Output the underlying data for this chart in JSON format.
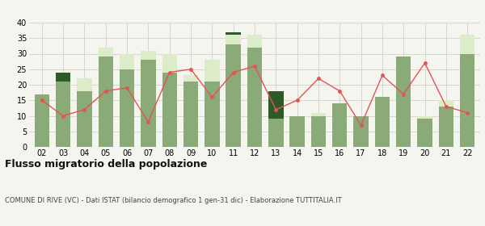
{
  "years": [
    "02",
    "03",
    "04",
    "05",
    "06",
    "07",
    "08",
    "09",
    "10",
    "11",
    "12",
    "13",
    "14",
    "15",
    "16",
    "17",
    "18",
    "19",
    "20",
    "21",
    "22"
  ],
  "iscritti_comuni": [
    17,
    21,
    18,
    29,
    25,
    28,
    24,
    21,
    21,
    33,
    32,
    9,
    10,
    10,
    14,
    10,
    16,
    29,
    9,
    13,
    30
  ],
  "iscritti_estero": [
    0,
    0,
    4,
    3,
    5,
    3,
    6,
    2,
    7,
    3,
    4,
    0,
    0,
    1,
    0,
    0,
    0,
    0,
    1,
    2,
    6
  ],
  "iscritti_altri": [
    0,
    3,
    0,
    0,
    0,
    0,
    0,
    0,
    0,
    1,
    0,
    9,
    0,
    0,
    0,
    0,
    0,
    0,
    0,
    0,
    0
  ],
  "cancellati": [
    15,
    10,
    12,
    18,
    19,
    8,
    24,
    25,
    16,
    24,
    26,
    12,
    15,
    22,
    18,
    7,
    23,
    17,
    27,
    13,
    11
  ],
  "color_comuni": "#8aaa78",
  "color_estero": "#ddecc8",
  "color_altri": "#2d5a27",
  "color_cancellati": "#e05555",
  "bg_color": "#f5f5f0",
  "grid_color": "#d0d0c8",
  "title": "Flusso migratorio della popolazione",
  "subtitle": "COMUNE DI RIVE (VC) - Dati ISTAT (bilancio demografico 1 gen-31 dic) - Elaborazione TUTTITALIA.IT",
  "ylim": [
    0,
    40
  ],
  "yticks": [
    0,
    5,
    10,
    15,
    20,
    25,
    30,
    35,
    40
  ]
}
